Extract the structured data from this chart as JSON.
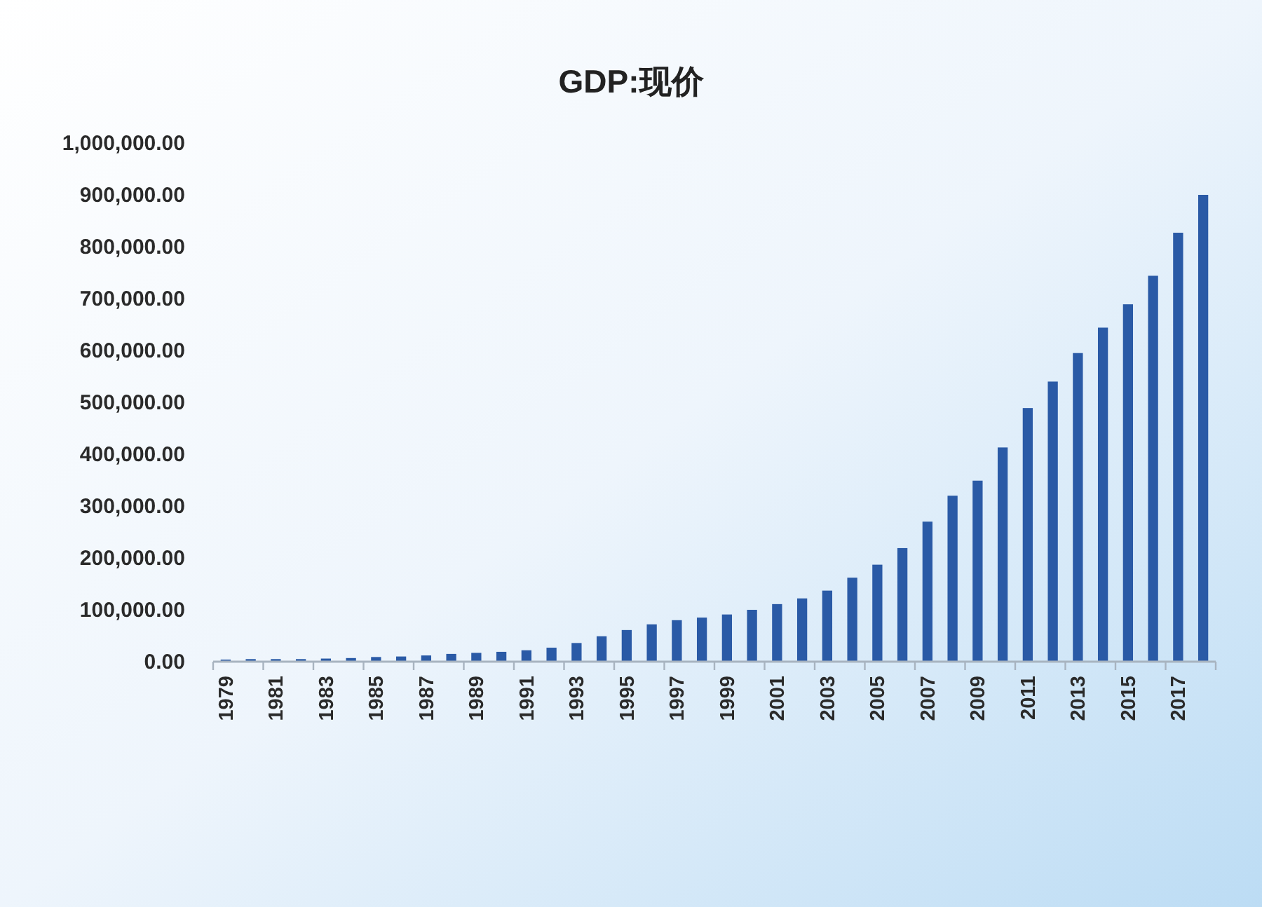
{
  "chart_data": {
    "type": "bar",
    "title": "GDP:现价",
    "categories": [
      "1979",
      null,
      "1981",
      null,
      "1983",
      null,
      "1985",
      null,
      "1987",
      null,
      "1989",
      null,
      "1991",
      null,
      "1993",
      null,
      "1995",
      null,
      "1997",
      null,
      "1999",
      null,
      "2001",
      null,
      "2003",
      null,
      "2005",
      null,
      "2007",
      null,
      "2009",
      null,
      "2011",
      null,
      "2013",
      null,
      "2015",
      null,
      "2017",
      null
    ],
    "values": [
      4000,
      5000,
      5000,
      5000,
      6000,
      7000,
      9000,
      10000,
      12000,
      15000,
      17000,
      19000,
      22000,
      27000,
      36000,
      49000,
      61000,
      72000,
      80000,
      85000,
      91000,
      100000,
      111000,
      122000,
      137000,
      162000,
      187000,
      219000,
      270000,
      320000,
      349000,
      413000,
      489000,
      540000,
      595000,
      644000,
      689000,
      744000,
      827000,
      900000
    ],
    "color": "#2a5aa6",
    "ylim": [
      0,
      1000000
    ],
    "yticks": [
      {
        "value": 0,
        "label": "0.00"
      },
      {
        "value": 100000,
        "label": "100,000.00"
      },
      {
        "value": 200000,
        "label": "200,000.00"
      },
      {
        "value": 300000,
        "label": "300,000.00"
      },
      {
        "value": 400000,
        "label": "400,000.00"
      },
      {
        "value": 500000,
        "label": "500,000.00"
      },
      {
        "value": 600000,
        "label": "600,000.00"
      },
      {
        "value": 700000,
        "label": "700,000.00"
      },
      {
        "value": 800000,
        "label": "800,000.00"
      },
      {
        "value": 900000,
        "label": "900,000.00"
      },
      {
        "value": 1000000,
        "label": "1,000,000.00"
      }
    ],
    "grid": false
  }
}
